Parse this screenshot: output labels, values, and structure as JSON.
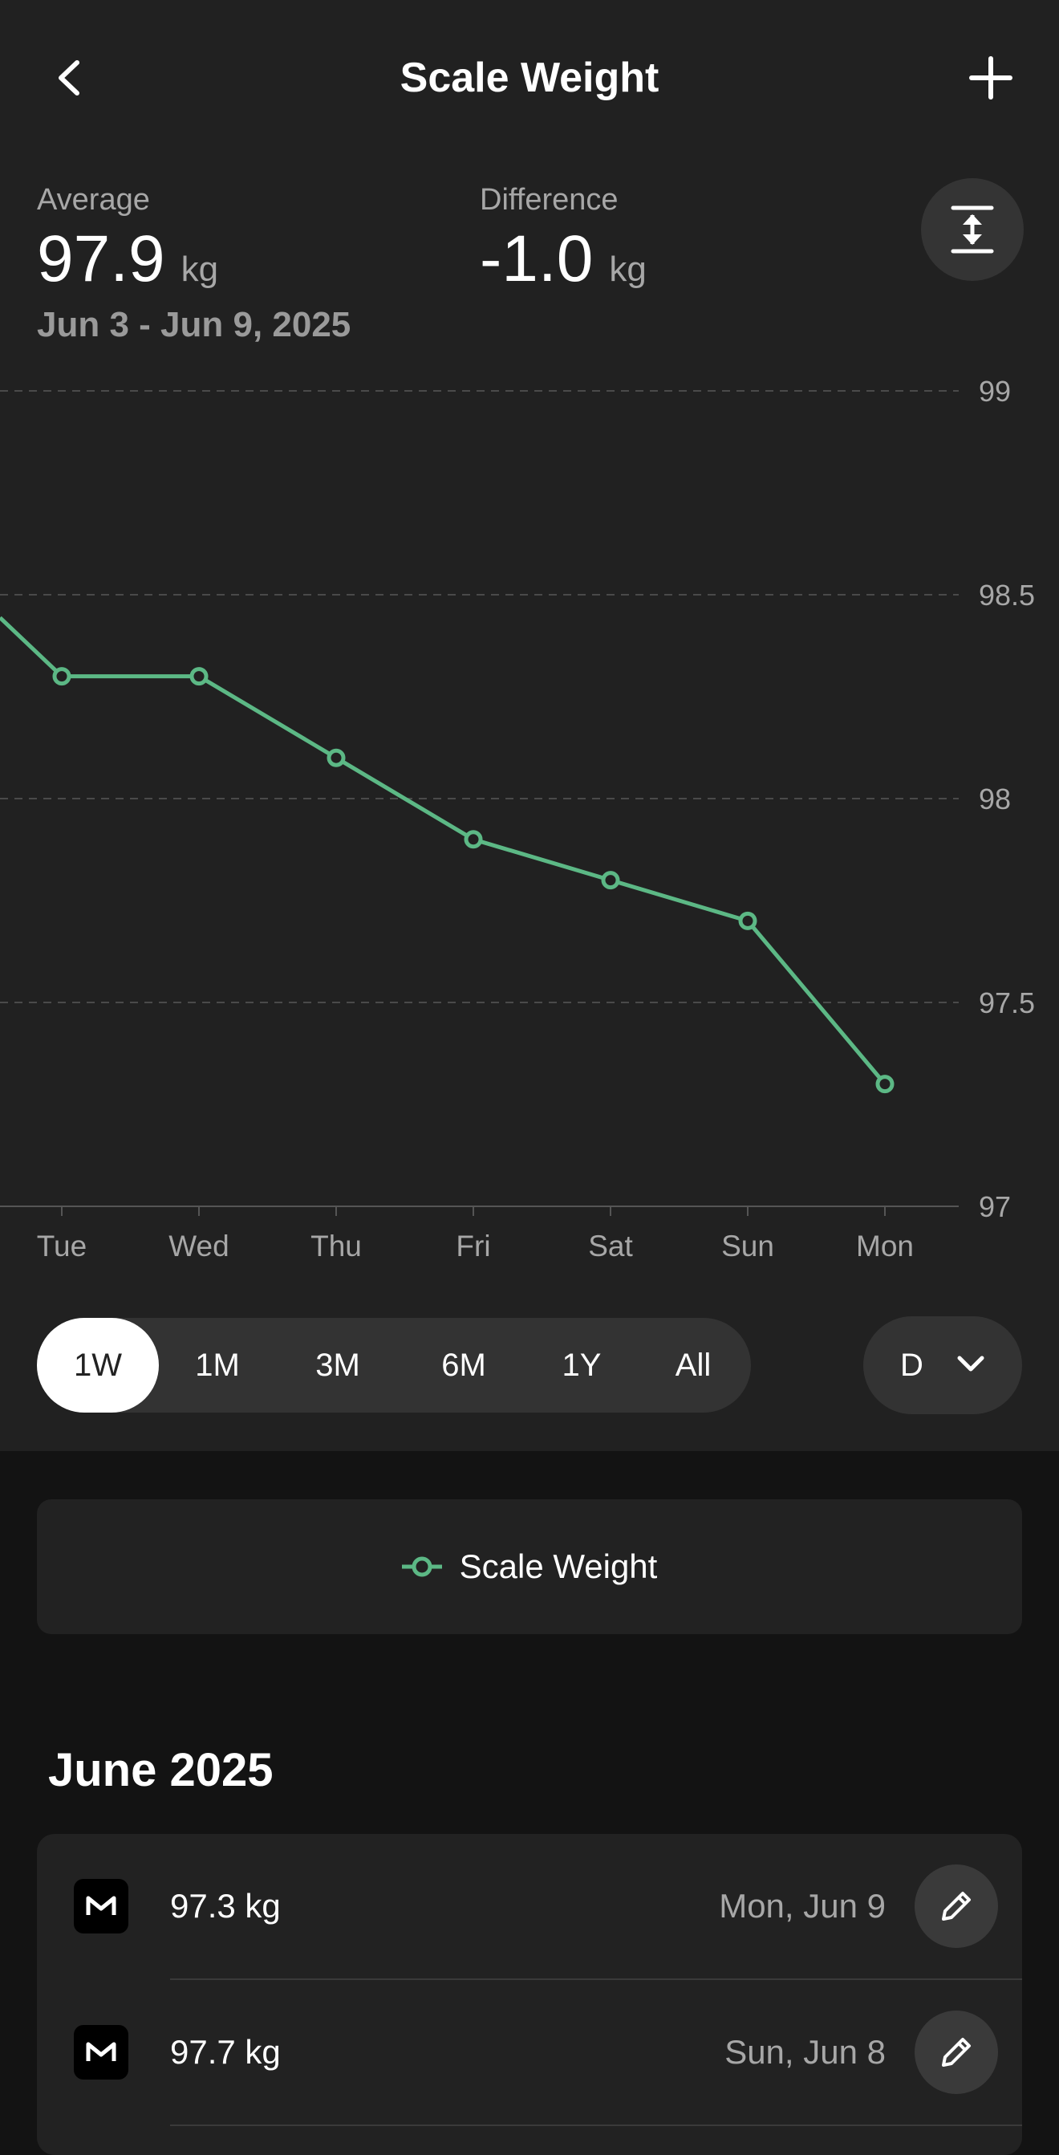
{
  "header": {
    "title": "Scale Weight"
  },
  "stats": {
    "average_label": "Average",
    "average_value": "97.9",
    "average_unit": "kg",
    "difference_label": "Difference",
    "difference_value": "-1.0",
    "difference_unit": "kg",
    "date_range": "Jun 3 - Jun 9, 2025"
  },
  "chart_data": {
    "type": "line",
    "categories": [
      "Tue",
      "Wed",
      "Thu",
      "Fri",
      "Sat",
      "Sun",
      "Mon"
    ],
    "series": [
      {
        "name": "Scale Weight",
        "values": [
          98.3,
          98.3,
          98.1,
          97.9,
          97.8,
          97.7,
          97.3
        ],
        "color": "#5cb885"
      }
    ],
    "yticks": [
      "99",
      "98.5",
      "98",
      "97.5",
      "97"
    ],
    "ylim": [
      97,
      99
    ],
    "grid": true,
    "y_axis_position": "right"
  },
  "ranges": {
    "items": [
      "1W",
      "1M",
      "3M",
      "6M",
      "1Y",
      "All"
    ],
    "selected": "1W"
  },
  "period": {
    "value": "D"
  },
  "legend": {
    "label": "Scale Weight"
  },
  "list": {
    "month": "June 2025",
    "entries": [
      {
        "weight": "97.3 kg",
        "date": "Mon, Jun 9"
      },
      {
        "weight": "97.7 kg",
        "date": "Sun, Jun 8"
      }
    ]
  },
  "colors": {
    "accent": "#5cb885",
    "background": "#212121"
  }
}
